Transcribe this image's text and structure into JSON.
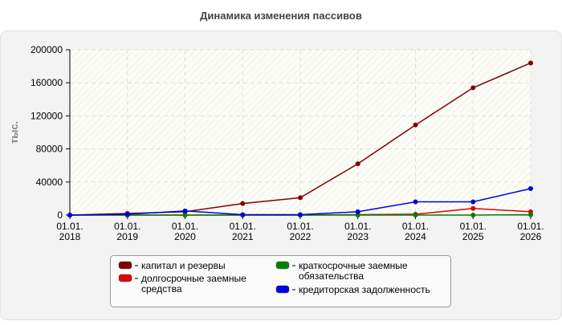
{
  "chart_data": {
    "type": "line",
    "title": "Динамика изменения пассивов",
    "y_label": "тыс.",
    "categories": [
      "01.01.\n2018",
      "01.01.\n2019",
      "01.01.\n2020",
      "01.01.\n2021",
      "01.01.\n2022",
      "01.01.\n2023",
      "01.01.\n2024",
      "01.01.\n2025",
      "01.01.\n2026"
    ],
    "series": [
      {
        "name": "капитал и резервы",
        "color": "#800000",
        "values": [
          0,
          2000,
          4000,
          14000,
          21000,
          62000,
          109000,
          154000,
          184000
        ]
      },
      {
        "name": "долгосрочные заемные\nсредства",
        "color": "#e00000",
        "values": [
          0,
          0,
          0,
          0,
          0,
          500,
          1000,
          8000,
          4000
        ]
      },
      {
        "name": "краткосрочные заемные\nобязательства",
        "color": "#008000",
        "values": [
          0,
          0,
          0,
          0,
          0,
          0,
          0,
          0,
          500
        ]
      },
      {
        "name": "кредиторская задолженность",
        "color": "#0000e0",
        "values": [
          0,
          1000,
          5000,
          500,
          500,
          4000,
          16000,
          16000,
          32000
        ]
      }
    ],
    "ylim": [
      0,
      200000
    ],
    "yticks": [
      0,
      40000,
      80000,
      120000,
      160000,
      200000
    ],
    "grid": true
  }
}
